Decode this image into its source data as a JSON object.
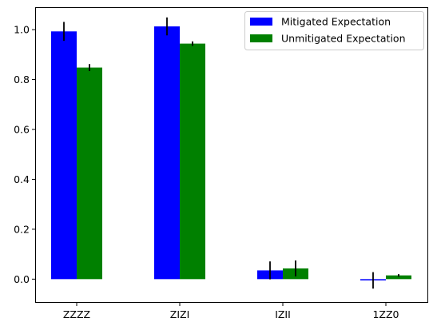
{
  "chart_data": {
    "type": "bar",
    "categories": [
      "ZZZZ",
      "ZIZI",
      "IZII",
      "1ZZ0"
    ],
    "series": [
      {
        "name": "Mitigated Expectation",
        "color": "#0000ff",
        "values": [
          0.993,
          1.013,
          0.035,
          -0.005
        ],
        "errors": [
          0.038,
          0.036,
          0.036,
          0.033
        ]
      },
      {
        "name": "Unmitigated Expectation",
        "color": "#008000",
        "values": [
          0.848,
          0.944,
          0.043,
          0.015
        ],
        "errors": [
          0.014,
          0.009,
          0.032,
          0.005
        ]
      }
    ],
    "ylim": [
      -0.095,
      1.09
    ],
    "yticks": [
      "0.0",
      "0.2",
      "0.4",
      "0.6",
      "0.8",
      "1.0"
    ],
    "ytick_values": [
      0,
      0.2,
      0.4,
      0.6,
      0.8,
      1.0
    ],
    "legend_position": "top-right",
    "grid": false,
    "title": "",
    "xlabel": "",
    "ylabel": ""
  }
}
